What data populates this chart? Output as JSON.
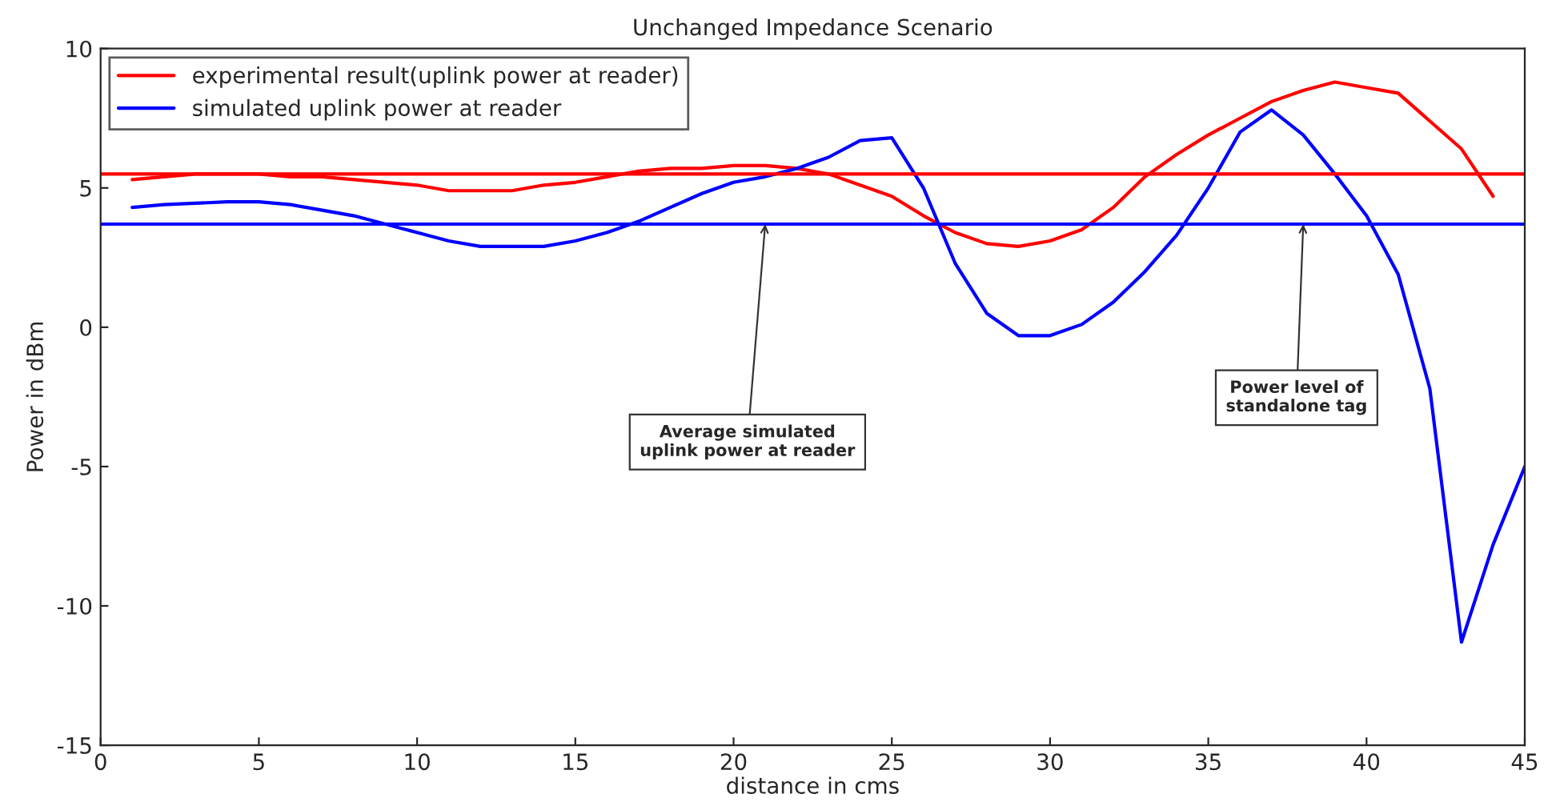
{
  "chart_data": {
    "type": "line",
    "title": "Unchanged Impedance Scenario",
    "xlabel": "distance in cms",
    "ylabel": "Power in dBm",
    "x": [
      1,
      2,
      3,
      4,
      5,
      6,
      7,
      8,
      9,
      10,
      11,
      12,
      13,
      14,
      15,
      16,
      17,
      18,
      19,
      20,
      21,
      22,
      23,
      24,
      25,
      26,
      27,
      28,
      29,
      30,
      31,
      32,
      33,
      34,
      35,
      36,
      37,
      38,
      39,
      40,
      41,
      42,
      43,
      44,
      45
    ],
    "series": [
      {
        "name": "experimental result(uplink power at reader)",
        "color": "#ff0000",
        "x": [
          1,
          2,
          3,
          4,
          5,
          6,
          7,
          8,
          9,
          10,
          11,
          12,
          13,
          14,
          15,
          16,
          17,
          18,
          19,
          20,
          21,
          22,
          23,
          24,
          25,
          26,
          27,
          28,
          29,
          30,
          31,
          32,
          33,
          34,
          35,
          36,
          37,
          38,
          39,
          40,
          41,
          42,
          43,
          44
        ],
        "values": [
          5.3,
          5.4,
          5.5,
          5.5,
          5.5,
          5.4,
          5.4,
          5.3,
          5.2,
          5.1,
          4.9,
          4.9,
          4.9,
          5.1,
          5.2,
          5.4,
          5.6,
          5.7,
          5.7,
          5.8,
          5.8,
          5.7,
          5.5,
          5.1,
          4.7,
          4.0,
          3.4,
          3.0,
          2.9,
          3.1,
          3.5,
          4.3,
          5.4,
          6.2,
          6.9,
          7.5,
          8.1,
          8.5,
          8.8,
          8.6,
          8.4,
          7.4,
          6.4,
          4.7
        ]
      },
      {
        "name": "simulated uplink power at reader",
        "color": "#0000ff",
        "values": [
          4.3,
          4.4,
          4.45,
          4.5,
          4.5,
          4.4,
          4.2,
          4.0,
          3.7,
          3.4,
          3.1,
          2.9,
          2.9,
          2.9,
          3.1,
          3.4,
          3.8,
          4.3,
          4.8,
          5.2,
          5.4,
          5.7,
          6.1,
          6.7,
          6.8,
          5.0,
          2.3,
          0.5,
          -0.3,
          -0.3,
          0.1,
          0.9,
          2.0,
          3.3,
          5.0,
          7.0,
          7.8,
          6.9,
          5.5,
          4.0,
          1.9,
          -2.2,
          -11.3,
          -7.8,
          -5.0
        ]
      }
    ],
    "ref_lines": [
      {
        "axis": "y",
        "value": 5.5,
        "color": "#ff0000"
      },
      {
        "axis": "y",
        "value": 3.7,
        "color": "#0000ff"
      }
    ],
    "annotations": [
      {
        "text": "Average simulated\nuplink power at reader",
        "x": 21,
        "y": 3.7
      },
      {
        "text": "Power level of\nstandalone tag",
        "x": 38,
        "y": 3.7
      }
    ],
    "xlim": [
      0,
      45
    ],
    "ylim": [
      -15,
      10
    ],
    "xticks": [
      0,
      5,
      10,
      15,
      20,
      25,
      30,
      35,
      40,
      45
    ],
    "yticks": [
      -15,
      -10,
      -5,
      0,
      5,
      10
    ],
    "grid": false,
    "legend": "top left"
  }
}
